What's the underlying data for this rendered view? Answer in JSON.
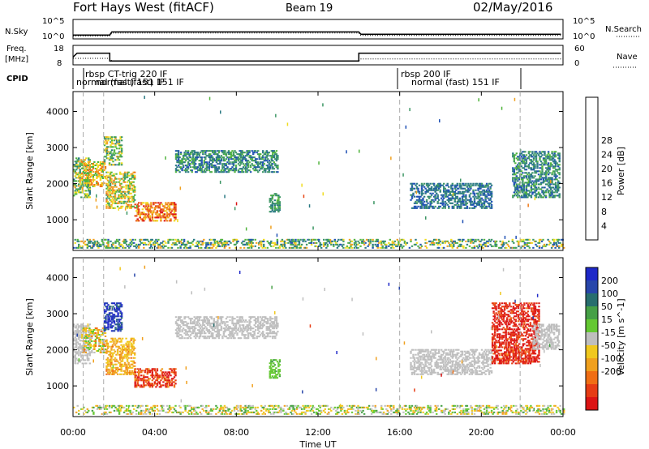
{
  "header": {
    "radar": "Fort Hays West (fitACF)",
    "beam": "Beam 19",
    "date": "02/May/2016"
  },
  "top_panels": {
    "nsky_label": "N.Sky",
    "nsky_ticks": [
      "10^5",
      "10^0"
    ],
    "nsearch_label": "N.Search",
    "nsearch_ticks": [
      "10^5",
      "10^0"
    ],
    "freq_label_line1": "Freq.",
    "freq_label_line2": "[MHz]",
    "freq_ticks": [
      "18",
      "8"
    ],
    "nave_label": "Nave",
    "nave_ticks": [
      "60",
      "0"
    ],
    "cpid_label": "CPID",
    "cpid_annotations": [
      "rbsp CT-trig 220 IF",
      "normal (fast) 151 IF",
      "normal (fast) 151 IF",
      "rbsp 200 IF",
      "normal (fast)  151  IF"
    ]
  },
  "axes": {
    "ylabel": "Slant Range [km]",
    "xlabel": "Time UT",
    "x_ticks": [
      "00:00",
      "04:00",
      "08:00",
      "12:00",
      "16:00",
      "20:00",
      "00:00"
    ],
    "y_ticks": [
      "1000",
      "2000",
      "3000",
      "4000"
    ]
  },
  "power_scale": {
    "label": "Power [dB]",
    "ticks": [
      "4",
      "8",
      "12",
      "16",
      "20",
      "24",
      "28"
    ],
    "colors": [
      "#1e1ee0",
      "#1e50b4",
      "#287882",
      "#3c9664",
      "#50b43c",
      "#f0dc1e",
      "#f0a01e",
      "#f07814",
      "#e64614",
      "#dc1414"
    ]
  },
  "velocity_scale": {
    "label": "Velocity [m s^-1]",
    "ticks": [
      "200",
      "100",
      "50",
      "15",
      "-15",
      "-50",
      "-100",
      "-200"
    ],
    "colors": [
      "#1e28c8",
      "#2846aa",
      "#286e6e",
      "#46a046",
      "#64c832",
      "#bebebe",
      "#f0c81e",
      "#f0a01e",
      "#f06e14",
      "#e63c14",
      "#dc1414"
    ]
  },
  "chart_data": [
    {
      "type": "line",
      "title": "N.Sky / N.Search",
      "x_unit": "hours UT",
      "xlim": [
        0,
        24
      ],
      "ylim_log10": [
        0,
        5
      ],
      "series": [
        {
          "name": "N.Sky",
          "x": [
            0,
            1.8,
            1.9,
            14.0,
            14.1,
            23.9
          ],
          "y_log10": [
            1.0,
            1.0,
            1.8,
            1.8,
            1.2,
            1.2
          ]
        },
        {
          "name": "N.Search",
          "x": [
            0,
            1.8,
            1.9,
            14.0,
            14.1,
            23.9
          ],
          "y_log10": [
            0.8,
            0.8,
            1.5,
            1.5,
            0.9,
            0.9
          ]
        }
      ]
    },
    {
      "type": "line",
      "title": "Freq. / Nave",
      "x_unit": "hours UT",
      "xlim": [
        0,
        24
      ],
      "series": [
        {
          "name": "Freq.",
          "x": [
            0,
            0.2,
            1.8,
            1.8,
            14.0,
            14.0,
            23.9
          ],
          "y": [
            12,
            14,
            14,
            10,
            10,
            14,
            14
          ]
        },
        {
          "name": "Nave",
          "x": [
            0,
            1.8,
            1.9,
            14.0,
            14.1,
            23.9
          ],
          "y": [
            20,
            20,
            12,
            12,
            18,
            18
          ]
        }
      ]
    },
    {
      "type": "heatmap",
      "title": "Power",
      "xlabel": "Time UT",
      "ylabel": "Slant Range [km]",
      "xlim": [
        0,
        24
      ],
      "ylim": [
        150,
        4550
      ],
      "zlim": [
        0,
        30
      ],
      "blobs": [
        {
          "t": [
            0.0,
            0.8
          ],
          "r": [
            1600,
            2700
          ],
          "z": [
            8,
            20
          ]
        },
        {
          "t": [
            0.4,
            1.6
          ],
          "r": [
            1900,
            2600
          ],
          "z": [
            12,
            24
          ]
        },
        {
          "t": [
            1.6,
            3.0
          ],
          "r": [
            1300,
            2300
          ],
          "z": [
            10,
            22
          ]
        },
        {
          "t": [
            3.0,
            5.0
          ],
          "r": [
            950,
            1450
          ],
          "z": [
            16,
            30
          ]
        },
        {
          "t": [
            1.5,
            2.4
          ],
          "r": [
            2500,
            3300
          ],
          "z": [
            8,
            20
          ]
        },
        {
          "t": [
            5.0,
            10.0
          ],
          "r": [
            2300,
            2900
          ],
          "z": [
            4,
            14
          ]
        },
        {
          "t": [
            9.6,
            10.1
          ],
          "r": [
            1200,
            1700
          ],
          "z": [
            6,
            14
          ]
        },
        {
          "t": [
            16.5,
            20.5
          ],
          "r": [
            1300,
            2000
          ],
          "z": [
            4,
            10
          ]
        },
        {
          "t": [
            21.5,
            23.8
          ],
          "r": [
            1600,
            2900
          ],
          "z": [
            4,
            14
          ]
        },
        {
          "t": [
            0.0,
            24.0
          ],
          "r": [
            200,
            450
          ],
          "z": [
            4,
            20
          ]
        }
      ]
    },
    {
      "type": "heatmap",
      "title": "Velocity",
      "xlabel": "Time UT",
      "ylabel": "Slant Range [km]",
      "xlim": [
        0,
        24
      ],
      "ylim": [
        150,
        4550
      ],
      "zlim": [
        -200,
        200
      ],
      "blobs": [
        {
          "t": [
            0.0,
            0.8
          ],
          "r": [
            1600,
            2700
          ],
          "v": [
            -15,
            15
          ]
        },
        {
          "t": [
            0.4,
            1.6
          ],
          "r": [
            1900,
            2600
          ],
          "v": [
            -100,
            50
          ]
        },
        {
          "t": [
            1.5,
            2.4
          ],
          "r": [
            2500,
            3300
          ],
          "v": [
            100,
            220
          ]
        },
        {
          "t": [
            1.6,
            3.0
          ],
          "r": [
            1300,
            2300
          ],
          "v": [
            -100,
            -20
          ]
        },
        {
          "t": [
            3.0,
            5.0
          ],
          "r": [
            950,
            1450
          ],
          "v": [
            -220,
            -80
          ]
        },
        {
          "t": [
            5.0,
            10.0
          ],
          "r": [
            2300,
            2900
          ],
          "v": [
            -15,
            15
          ]
        },
        {
          "t": [
            9.6,
            10.1
          ],
          "r": [
            1200,
            1700
          ],
          "v": [
            20,
            60
          ]
        },
        {
          "t": [
            16.5,
            20.5
          ],
          "r": [
            1300,
            2000
          ],
          "v": [
            -15,
            15
          ]
        },
        {
          "t": [
            20.5,
            22.8
          ],
          "r": [
            1600,
            3300
          ],
          "v": [
            -220,
            -120
          ]
        },
        {
          "t": [
            22.5,
            23.8
          ],
          "r": [
            2000,
            2700
          ],
          "v": [
            -15,
            15
          ]
        },
        {
          "t": [
            0.0,
            24.0
          ],
          "r": [
            200,
            450
          ],
          "v": [
            -80,
            80
          ]
        }
      ]
    }
  ]
}
